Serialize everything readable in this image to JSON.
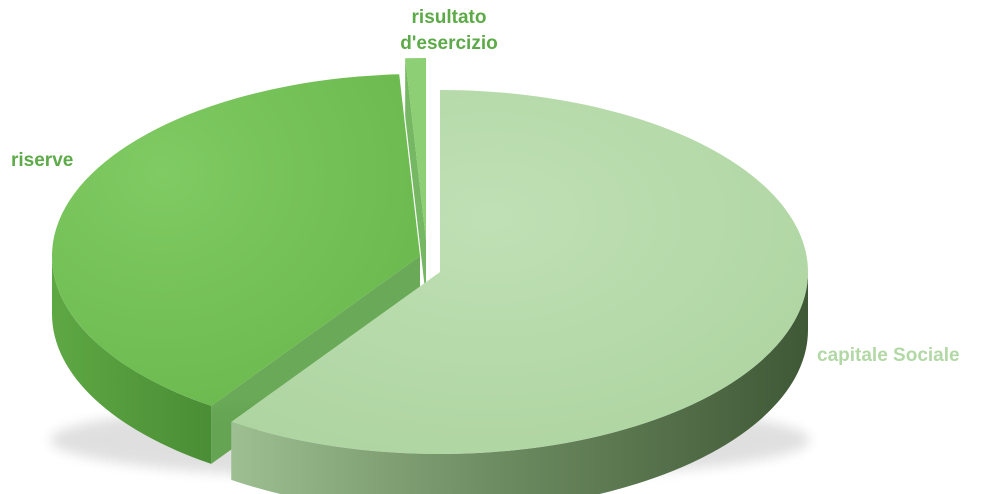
{
  "chart_data": {
    "type": "pie",
    "style": "3d-exploded",
    "title": "",
    "legend": "none",
    "slices": [
      {
        "label": "capitale Sociale",
        "value": 59.6,
        "color": "#b5daa9",
        "side_color": "#5b7f4f"
      },
      {
        "label": "riserve",
        "value": 39.5,
        "color": "#74c257",
        "side_color": "#4f9a3a"
      },
      {
        "label": "risultato d'esercizio",
        "label_lines": [
          "risultato",
          "d'esercizio"
        ],
        "value": 0.9,
        "color": "#8ccf74",
        "side_color": "#5daa48"
      }
    ],
    "label_colors": {
      "capitale Sociale": "#b2d8a6",
      "riserve": "#5daa48",
      "risultato d'esercizio": "#5daa48"
    }
  }
}
